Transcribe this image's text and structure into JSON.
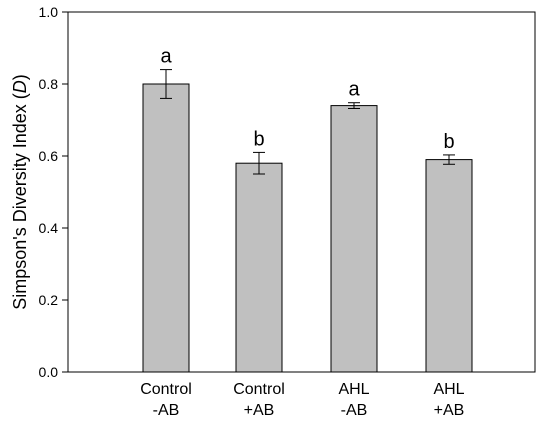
{
  "chart_data": {
    "type": "bar",
    "categories": [
      {
        "line1": "Control",
        "line2": "-AB"
      },
      {
        "line1": "Control",
        "line2": "+AB"
      },
      {
        "line1": "AHL",
        "line2": "-AB"
      },
      {
        "line1": "AHL",
        "line2": "+AB"
      }
    ],
    "values": [
      0.8,
      0.58,
      0.74,
      0.59
    ],
    "errors": [
      0.04,
      0.03,
      0.008,
      0.013
    ],
    "significance": [
      "a",
      "b",
      "a",
      "b"
    ],
    "ylabel_prefix": "Simpson's Diversity Index (",
    "ylabel_var": "D",
    "ylabel_suffix": ")",
    "xlabel": "",
    "ylim": [
      0,
      1.0
    ],
    "yticks": [
      "0.0",
      "0.2",
      "0.4",
      "0.6",
      "0.8",
      "1.0"
    ],
    "grid": false,
    "legend": "none",
    "bar_color": "#c0c0c0",
    "bar_stroke": "#000000"
  }
}
